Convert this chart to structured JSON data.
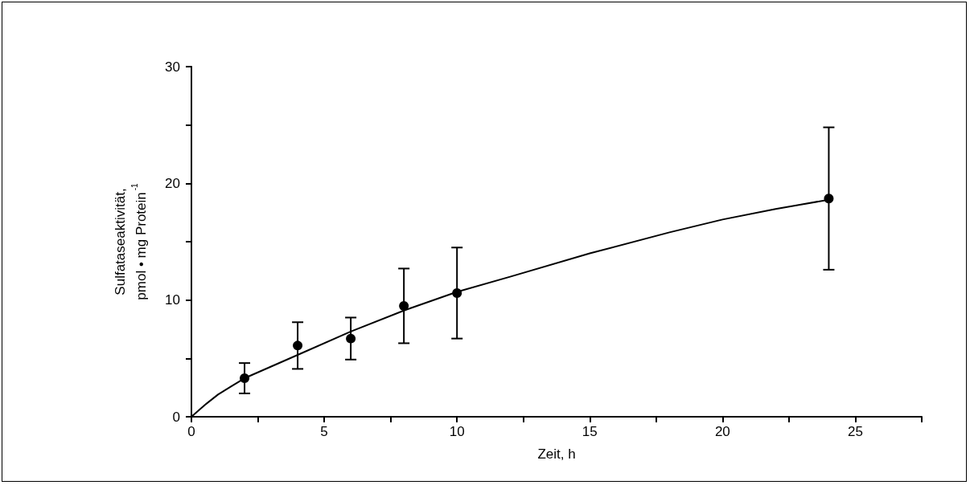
{
  "chart_data": {
    "type": "scatter",
    "xlabel": "Zeit, h",
    "ylabel": "Sulfataseaktivität,\npmol • mg Protein$^{-1}$",
    "xlim": [
      0,
      27.5
    ],
    "ylim": [
      0,
      30
    ],
    "xticks": [
      0,
      {
        "value": 2.5,
        "label": null
      },
      5,
      {
        "value": 7.5,
        "label": null
      },
      10,
      {
        "value": 12.5,
        "label": null
      },
      15,
      {
        "value": 17.5,
        "label": null
      },
      20,
      {
        "value": 22.5,
        "label": null
      },
      25,
      {
        "value": 27.5,
        "label": null
      }
    ],
    "yticks": [
      0,
      {
        "value": 5,
        "label": null
      },
      10,
      {
        "value": 15,
        "label": null
      },
      20,
      {
        "value": 25,
        "label": null
      },
      30
    ],
    "grid": false,
    "series": [
      {
        "color": "#000000",
        "marker": "circle",
        "x": [
          2,
          4,
          6,
          8,
          10,
          24
        ],
        "values": [
          3.3,
          6.1,
          6.7,
          9.5,
          10.6,
          18.7
        ],
        "errors": [
          1.3,
          2.0,
          1.8,
          3.2,
          3.9,
          6.1
        ]
      },
      {
        "type": "line",
        "color": "#000000",
        "marker": "none",
        "line_style": "solid",
        "x": [
          0,
          0.5,
          1,
          1.5,
          2,
          3,
          4,
          6,
          8,
          10,
          12,
          15,
          18,
          20,
          22,
          24
        ],
        "values": [
          0,
          1.0,
          1.9,
          2.6,
          3.3,
          4.3,
          5.3,
          7.3,
          9.1,
          10.7,
          12.0,
          14.0,
          15.8,
          16.9,
          17.8,
          18.6
        ]
      }
    ]
  }
}
